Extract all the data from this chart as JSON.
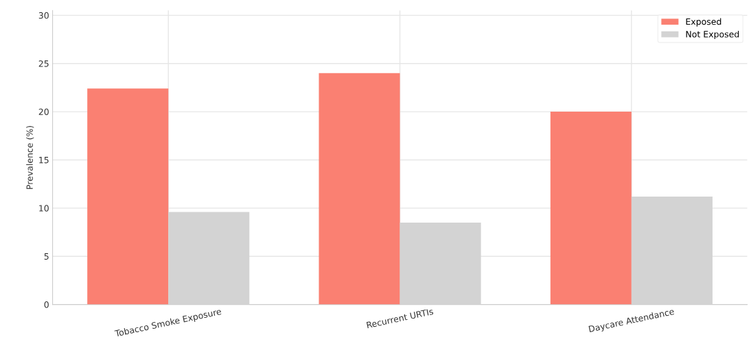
{
  "chart_data": {
    "type": "bar",
    "ylabel": "Prevalence (%)",
    "categories": [
      "Tobacco Smoke Exposure",
      "Recurrent URTIs",
      "Daycare Attendance"
    ],
    "series": [
      {
        "name": "Exposed",
        "color": "#fa8072",
        "values": [
          22.4,
          24.0,
          20.0
        ]
      },
      {
        "name": "Not Exposed",
        "color": "#d3d3d3",
        "values": [
          9.6,
          8.5,
          11.2
        ]
      }
    ],
    "ylim": [
      0,
      30.5
    ],
    "yticks": [
      0,
      5,
      10,
      15,
      20,
      25,
      30
    ],
    "grid": true,
    "legend": "top right"
  }
}
